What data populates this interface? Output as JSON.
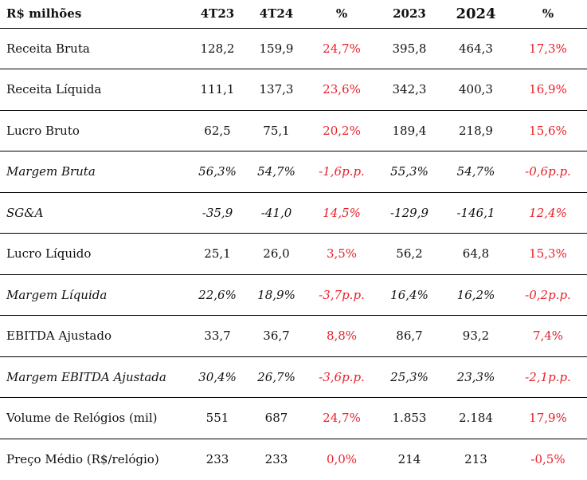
{
  "table": {
    "headers": [
      "R$ milhões",
      "4T23",
      "4T24",
      "%",
      "2023",
      "2024",
      "%"
    ],
    "rows": [
      {
        "label": "Receita Bruta",
        "italic": false,
        "v4t23": "128,2",
        "v4t24": "159,9",
        "pct_q": "24,7%",
        "v2023": "395,8",
        "v2024": "464,3",
        "pct_y": "17,3%"
      },
      {
        "label": "Receita Líquida",
        "italic": false,
        "v4t23": "111,1",
        "v4t24": "137,3",
        "pct_q": "23,6%",
        "v2023": "342,3",
        "v2024": "400,3",
        "pct_y": "16,9%"
      },
      {
        "label": "Lucro Bruto",
        "italic": false,
        "v4t23": "62,5",
        "v4t24": "75,1",
        "pct_q": "20,2%",
        "v2023": "189,4",
        "v2024": "218,9",
        "pct_y": "15,6%"
      },
      {
        "label": "Margem Bruta",
        "italic": true,
        "v4t23": "56,3%",
        "v4t24": "54,7%",
        "pct_q": "-1,6p.p.",
        "v2023": "55,3%",
        "v2024": "54,7%",
        "pct_y": "-0,6p.p."
      },
      {
        "label": "SG&A",
        "italic": true,
        "v4t23": "-35,9",
        "v4t24": "-41,0",
        "pct_q": "14,5%",
        "v2023": "-129,9",
        "v2024": "-146,1",
        "pct_y": "12,4%"
      },
      {
        "label": "Lucro Líquido",
        "italic": false,
        "v4t23": "25,1",
        "v4t24": "26,0",
        "pct_q": "3,5%",
        "v2023": "56,2",
        "v2024": "64,8",
        "pct_y": "15,3%"
      },
      {
        "label": "Margem Líquida",
        "italic": true,
        "v4t23": "22,6%",
        "v4t24": "18,9%",
        "pct_q": "-3,7p.p.",
        "v2023": "16,4%",
        "v2024": "16,2%",
        "pct_y": "-0,2p.p."
      },
      {
        "label": "EBITDA Ajustado",
        "italic": false,
        "v4t23": "33,7",
        "v4t24": "36,7",
        "pct_q": "8,8%",
        "v2023": "86,7",
        "v2024": "93,2",
        "pct_y": "7,4%"
      },
      {
        "label": "Margem EBITDA Ajustada",
        "italic": true,
        "v4t23": "30,4%",
        "v4t24": "26,7%",
        "pct_q": "-3,6p.p.",
        "v2023": "25,3%",
        "v2024": "23,3%",
        "pct_y": "-2,1p.p."
      },
      {
        "label": "Volume de Relógios (mil)",
        "italic": false,
        "v4t23": "551",
        "v4t24": "687",
        "pct_q": "24,7%",
        "v2023": "1.853",
        "v2024": "2.184",
        "pct_y": "17,9%"
      },
      {
        "label": "Preço Médio (R$/relógio)",
        "italic": false,
        "v4t23": "233",
        "v4t24": "233",
        "pct_q": "0,0%",
        "v2023": "214",
        "v2024": "213",
        "pct_y": "-0,5%"
      }
    ]
  },
  "colors": {
    "variation_text": "#e8202a",
    "rule": "#000000"
  }
}
